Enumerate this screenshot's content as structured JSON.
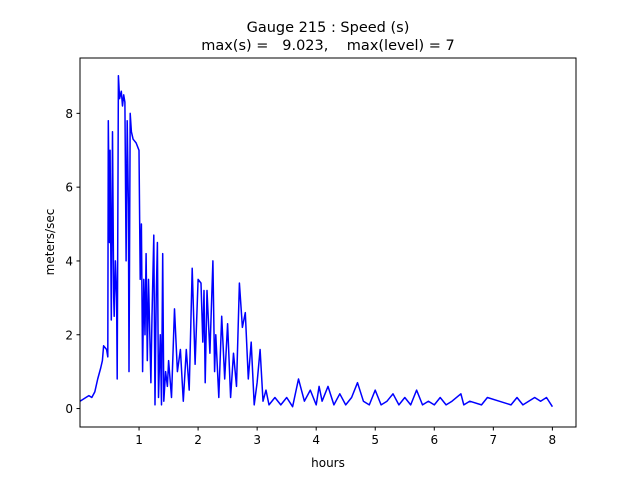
{
  "chart_data": {
    "type": "line",
    "title_line1": "Gauge 215 : Speed (s)",
    "title_line2": "max(s) =   9.023,    max(level) = 7",
    "xlabel": "hours",
    "ylabel": "meters/sec",
    "xlim": [
      0.0,
      8.4
    ],
    "ylim": [
      -0.5,
      9.5
    ],
    "xticks": [
      1,
      2,
      3,
      4,
      5,
      6,
      7,
      8
    ],
    "xtick_labels": [
      "1",
      "2",
      "3",
      "4",
      "5",
      "6",
      "7",
      "8"
    ],
    "yticks": [
      0,
      2,
      4,
      6,
      8
    ],
    "ytick_labels": [
      "0",
      "2",
      "4",
      "6",
      "8"
    ],
    "grid": false,
    "series": [
      {
        "name": "speed",
        "color": "#0000ff",
        "x": [
          0.0,
          0.1,
          0.15,
          0.2,
          0.25,
          0.3,
          0.35,
          0.38,
          0.4,
          0.45,
          0.47,
          0.48,
          0.5,
          0.51,
          0.53,
          0.55,
          0.57,
          0.58,
          0.6,
          0.62,
          0.63,
          0.65,
          0.67,
          0.7,
          0.72,
          0.74,
          0.76,
          0.78,
          0.8,
          0.82,
          0.83,
          0.85,
          0.87,
          0.9,
          0.95,
          1.0,
          1.02,
          1.04,
          1.06,
          1.08,
          1.1,
          1.12,
          1.14,
          1.16,
          1.2,
          1.22,
          1.25,
          1.27,
          1.29,
          1.31,
          1.33,
          1.36,
          1.38,
          1.4,
          1.42,
          1.45,
          1.48,
          1.5,
          1.55,
          1.6,
          1.65,
          1.7,
          1.75,
          1.8,
          1.85,
          1.9,
          1.95,
          2.0,
          2.05,
          2.08,
          2.1,
          2.12,
          2.15,
          2.2,
          2.25,
          2.28,
          2.3,
          2.35,
          2.4,
          2.45,
          2.5,
          2.55,
          2.6,
          2.65,
          2.7,
          2.75,
          2.8,
          2.85,
          2.9,
          2.95,
          3.0,
          3.05,
          3.1,
          3.15,
          3.2,
          3.3,
          3.4,
          3.5,
          3.6,
          3.7,
          3.8,
          3.9,
          4.0,
          4.05,
          4.1,
          4.2,
          4.3,
          4.4,
          4.5,
          4.6,
          4.7,
          4.8,
          4.9,
          5.0,
          5.1,
          5.2,
          5.3,
          5.4,
          5.5,
          5.6,
          5.7,
          5.8,
          5.9,
          6.0,
          6.1,
          6.2,
          6.3,
          6.45,
          6.5,
          6.6,
          6.8,
          6.9,
          7.1,
          7.3,
          7.4,
          7.5,
          7.7,
          7.8,
          7.9,
          8.0
        ],
        "y": [
          0.2,
          0.3,
          0.35,
          0.3,
          0.45,
          0.8,
          1.1,
          1.3,
          1.7,
          1.6,
          1.4,
          7.8,
          4.5,
          7.0,
          2.4,
          7.5,
          3.0,
          2.5,
          4.0,
          3.0,
          0.8,
          9.02,
          8.4,
          8.6,
          8.2,
          8.5,
          8.3,
          4.0,
          7.8,
          5.5,
          1.0,
          8.0,
          7.5,
          7.3,
          7.2,
          7.0,
          3.5,
          5.0,
          1.0,
          3.5,
          2.0,
          4.2,
          1.3,
          3.5,
          0.7,
          2.5,
          4.7,
          0.1,
          3.0,
          4.5,
          0.3,
          2.0,
          0.1,
          4.2,
          0.2,
          1.0,
          0.6,
          1.3,
          0.3,
          2.7,
          1.0,
          1.6,
          0.2,
          1.6,
          0.5,
          3.8,
          1.2,
          3.5,
          3.4,
          1.8,
          3.2,
          0.7,
          3.2,
          1.5,
          4.0,
          1.0,
          2.0,
          0.3,
          2.5,
          0.8,
          2.3,
          0.3,
          1.5,
          0.6,
          3.4,
          2.2,
          2.6,
          0.8,
          1.8,
          0.1,
          0.7,
          1.6,
          0.2,
          0.5,
          0.1,
          0.3,
          0.1,
          0.3,
          0.05,
          0.8,
          0.2,
          0.5,
          0.1,
          0.6,
          0.2,
          0.6,
          0.1,
          0.4,
          0.1,
          0.3,
          0.7,
          0.2,
          0.1,
          0.5,
          0.1,
          0.2,
          0.4,
          0.1,
          0.3,
          0.1,
          0.5,
          0.1,
          0.2,
          0.1,
          0.3,
          0.1,
          0.2,
          0.4,
          0.1,
          0.2,
          0.1,
          0.3,
          0.2,
          0.1,
          0.3,
          0.1,
          0.3,
          0.2,
          0.3,
          0.05
        ]
      }
    ]
  }
}
